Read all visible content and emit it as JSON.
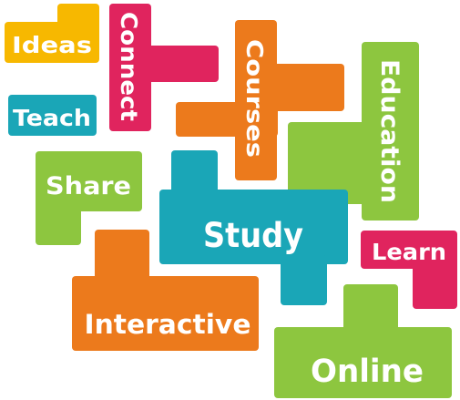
{
  "colors": {
    "yellow": "#F7B800",
    "magenta": "#E0245E",
    "orange": "#EC7A1C",
    "green": "#8DC63F",
    "teal": "#1AA6B7",
    "text": "#FFFFFF"
  },
  "words": {
    "ideas": "Ideas",
    "connect": "Connect",
    "courses": "Courses",
    "education": "Education",
    "teach": "Teach",
    "share": "Share",
    "study": "Study",
    "learn": "Learn",
    "interactive": "Interactive",
    "online": "Online"
  }
}
